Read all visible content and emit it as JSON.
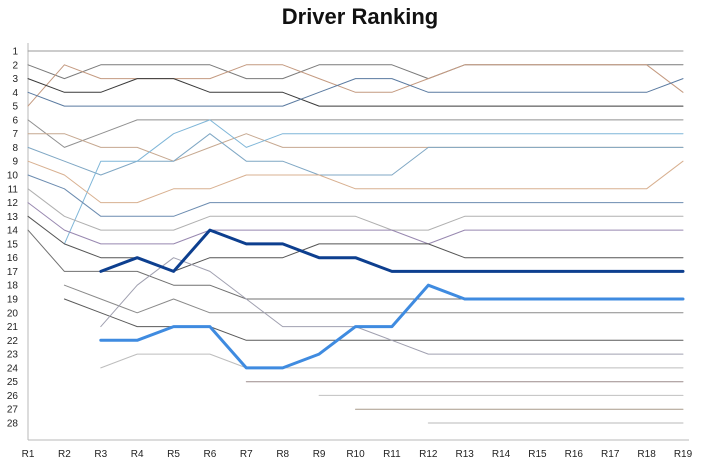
{
  "chart_data": {
    "type": "line",
    "title": "Driver Ranking",
    "xlabel": "",
    "ylabel": "",
    "categories": [
      "R1",
      "R2",
      "R3",
      "R4",
      "R5",
      "R6",
      "R7",
      "R8",
      "R9",
      "R10",
      "R11",
      "R12",
      "R13",
      "R14",
      "R15",
      "R16",
      "R17",
      "R18",
      "R19"
    ],
    "y_ticks": [
      1,
      2,
      3,
      4,
      5,
      6,
      7,
      8,
      9,
      10,
      11,
      12,
      13,
      14,
      15,
      16,
      17,
      18,
      19,
      20,
      21,
      22,
      23,
      24,
      25,
      26,
      27,
      28
    ],
    "ylim": [
      1,
      28
    ],
    "y_inverted": true,
    "grid": false,
    "legend": "none",
    "highlight_colors": {
      "dark": "#0d3f8f",
      "light": "#3f8be0"
    },
    "series": [
      {
        "values": [
          1,
          1,
          1,
          1,
          1,
          1,
          1,
          1,
          1,
          1,
          1,
          1,
          1,
          1,
          1,
          1,
          1,
          1,
          1
        ],
        "color": "#9a9a9a",
        "width": 1
      },
      {
        "values": [
          2,
          3,
          2,
          2,
          2,
          2,
          3,
          3,
          2,
          2,
          2,
          3,
          2,
          2,
          2,
          2,
          2,
          2,
          2
        ],
        "color": "#7a7a7a",
        "width": 1
      },
      {
        "values": [
          5,
          2,
          3,
          3,
          3,
          3,
          2,
          2,
          3,
          4,
          4,
          3,
          2,
          2,
          2,
          2,
          2,
          2,
          4
        ],
        "color": "#c49a80",
        "width": 1
      },
      {
        "values": [
          3,
          4,
          4,
          3,
          3,
          4,
          4,
          4,
          5,
          5,
          5,
          5,
          5,
          5,
          5,
          5,
          5,
          5,
          5
        ],
        "color": "#3a3a3a",
        "width": 1
      },
      {
        "values": [
          4,
          5,
          5,
          5,
          5,
          5,
          5,
          5,
          4,
          3,
          3,
          4,
          4,
          4,
          4,
          4,
          4,
          4,
          3
        ],
        "color": "#5a7aa0",
        "width": 1
      },
      {
        "values": [
          6,
          8,
          7,
          6,
          6,
          6,
          6,
          6,
          6,
          6,
          6,
          6,
          6,
          6,
          6,
          6,
          6,
          6,
          6
        ],
        "color": "#909090",
        "width": 1
      },
      {
        "values": [
          7,
          7,
          8,
          8,
          9,
          8,
          7,
          8,
          8,
          8,
          8,
          8,
          8,
          8,
          8,
          8,
          8,
          8,
          8
        ],
        "color": "#c6a890",
        "width": 1
      },
      {
        "values": [
          8,
          9,
          10,
          9,
          9,
          7,
          9,
          9,
          10,
          10,
          10,
          8,
          8,
          8,
          8,
          8,
          8,
          8,
          8
        ],
        "color": "#7fa7c4",
        "width": 1
      },
      {
        "values": [
          null,
          15,
          9,
          9,
          7,
          6,
          8,
          7,
          7,
          7,
          7,
          7,
          7,
          7,
          7,
          7,
          7,
          7,
          7
        ],
        "color": "#7fb6d8",
        "width": 1
      },
      {
        "values": [
          9,
          10,
          12,
          12,
          11,
          11,
          10,
          10,
          10,
          11,
          11,
          11,
          11,
          11,
          11,
          11,
          11,
          11,
          9
        ],
        "color": "#d8b090",
        "width": 1
      },
      {
        "values": [
          10,
          11,
          13,
          13,
          13,
          12,
          12,
          12,
          12,
          12,
          12,
          12,
          12,
          12,
          12,
          12,
          12,
          12,
          12
        ],
        "color": "#6c8cb0",
        "width": 1
      },
      {
        "values": [
          11,
          13,
          14,
          14,
          14,
          13,
          13,
          13,
          13,
          13,
          14,
          14,
          13,
          13,
          13,
          13,
          13,
          13,
          13
        ],
        "color": "#b0b0b0",
        "width": 1
      },
      {
        "values": [
          12,
          14,
          15,
          15,
          15,
          14,
          14,
          14,
          14,
          14,
          14,
          15,
          14,
          14,
          14,
          14,
          14,
          14,
          14
        ],
        "color": "#9888b0",
        "width": 1
      },
      {
        "values": [
          13,
          15,
          16,
          16,
          17,
          16,
          16,
          16,
          15,
          15,
          15,
          15,
          16,
          16,
          16,
          16,
          16,
          16,
          16
        ],
        "color": "#555555",
        "width": 1
      },
      {
        "values": [
          14,
          17,
          17,
          17,
          18,
          18,
          19,
          19,
          19,
          19,
          19,
          19,
          19,
          19,
          19,
          19,
          19,
          19,
          19
        ],
        "color": "#707070",
        "width": 1
      },
      {
        "values": [
          null,
          18,
          19,
          20,
          19,
          20,
          20,
          20,
          20,
          20,
          20,
          20,
          20,
          20,
          20,
          20,
          20,
          20,
          20
        ],
        "color": "#8a8a8a",
        "width": 1
      },
      {
        "values": [
          null,
          19,
          20,
          21,
          21,
          21,
          22,
          22,
          22,
          22,
          22,
          22,
          22,
          22,
          22,
          22,
          22,
          22,
          22
        ],
        "color": "#5a5a5a",
        "width": 1
      },
      {
        "values": [
          null,
          null,
          21,
          18,
          16,
          17,
          19,
          21,
          21,
          21,
          22,
          23,
          23,
          23,
          23,
          23,
          23,
          23,
          23
        ],
        "color": "#a0a0b0",
        "width": 1
      },
      {
        "values": [
          null,
          null,
          24,
          23,
          23,
          23,
          24,
          24,
          24,
          24,
          24,
          24,
          24,
          24,
          24,
          24,
          24,
          24,
          24
        ],
        "color": "#bdbdbd",
        "width": 1
      },
      {
        "values": [
          null,
          null,
          null,
          null,
          null,
          null,
          25,
          25,
          25,
          25,
          25,
          25,
          25,
          25,
          25,
          25,
          25,
          25,
          25
        ],
        "color": "#9c8c8c",
        "width": 1
      },
      {
        "values": [
          null,
          null,
          null,
          null,
          null,
          null,
          null,
          null,
          26,
          26,
          26,
          26,
          26,
          26,
          26,
          26,
          26,
          26,
          26
        ],
        "color": "#c0c0c0",
        "width": 1
      },
      {
        "values": [
          null,
          null,
          null,
          null,
          null,
          null,
          null,
          null,
          null,
          27,
          27,
          27,
          27,
          27,
          27,
          27,
          27,
          27,
          27
        ],
        "color": "#a89a8a",
        "width": 1
      },
      {
        "values": [
          null,
          null,
          null,
          null,
          null,
          null,
          null,
          null,
          null,
          null,
          null,
          28,
          28,
          28,
          28,
          28,
          28,
          28,
          28
        ],
        "color": "#bababa",
        "width": 1
      },
      {
        "values": [
          null,
          null,
          17,
          16,
          17,
          14,
          15,
          15,
          16,
          16,
          17,
          17,
          17,
          17,
          17,
          17,
          17,
          17,
          17
        ],
        "color": "#0d3f8f",
        "width": 3
      },
      {
        "values": [
          null,
          null,
          22,
          22,
          21,
          21,
          24,
          24,
          23,
          21,
          21,
          18,
          19,
          19,
          19,
          19,
          19,
          19,
          19
        ],
        "color": "#3f8be0",
        "width": 3
      }
    ]
  }
}
